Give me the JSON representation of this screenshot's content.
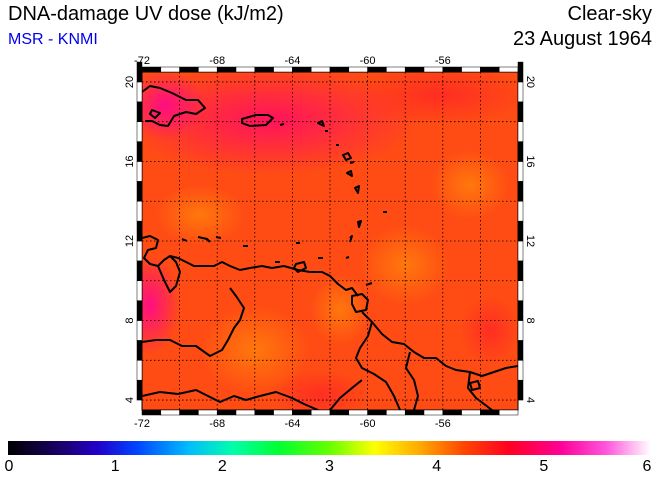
{
  "header": {
    "title": "DNA-damage UV dose (kJ/m2)",
    "subtitle": "MSR - KNMI",
    "condition": "Clear-sky",
    "date": "23 August 1964"
  },
  "map": {
    "lon_ticks": [
      "-72",
      "-68",
      "-64",
      "-60",
      "-56"
    ],
    "lat_ticks": [
      "20",
      "16",
      "12",
      "8",
      "4"
    ],
    "lon_range": [
      -72,
      -52
    ],
    "lat_range": [
      3.5,
      20.5
    ],
    "field_description_colors": {
      "dominant": "#ff4a12",
      "high": "#ff1a48",
      "low": "#ff7a10"
    }
  },
  "colorbar": {
    "labels": [
      "0",
      "1",
      "2",
      "3",
      "4",
      "5",
      "6"
    ],
    "range": [
      0,
      6
    ],
    "stops": [
      "#000000",
      "#2a00aa",
      "#0033ff",
      "#00ccff",
      "#00ff66",
      "#66ff00",
      "#ffff00",
      "#ff9900",
      "#ff2200",
      "#ff0066",
      "#ff33cc",
      "#ffffff"
    ]
  }
}
